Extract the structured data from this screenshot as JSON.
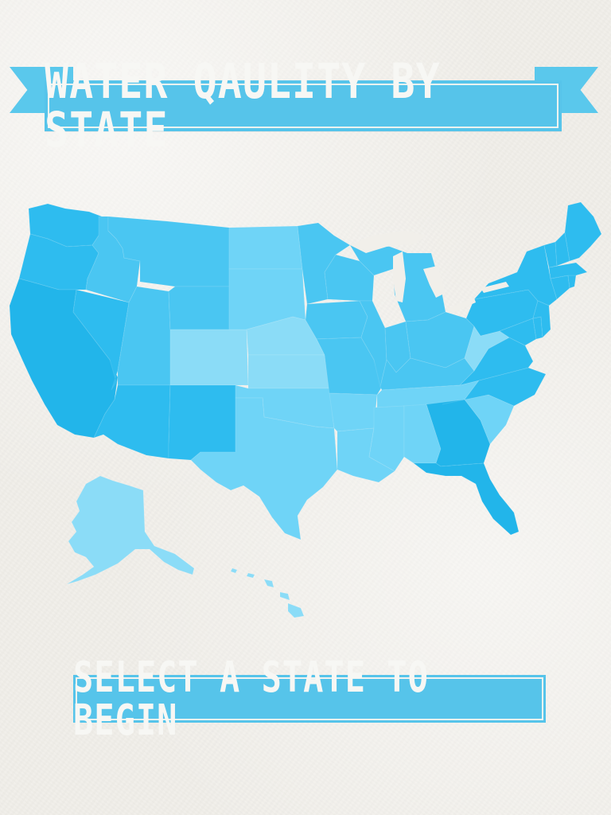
{
  "app": {
    "title": "WATER QAULITY BY STATE",
    "cta_label": "SELECT A STATE TO BEGIN"
  },
  "map": {
    "states": [
      {
        "name": "Washington"
      },
      {
        "name": "Oregon"
      },
      {
        "name": "California"
      },
      {
        "name": "Idaho"
      },
      {
        "name": "Montana"
      },
      {
        "name": "Nevada"
      },
      {
        "name": "Utah"
      },
      {
        "name": "Arizona"
      },
      {
        "name": "Wyoming"
      },
      {
        "name": "Colorado"
      },
      {
        "name": "New Mexico"
      },
      {
        "name": "North Dakota"
      },
      {
        "name": "South Dakota"
      },
      {
        "name": "Nebraska"
      },
      {
        "name": "Kansas"
      },
      {
        "name": "Oklahoma"
      },
      {
        "name": "Texas"
      },
      {
        "name": "Minnesota"
      },
      {
        "name": "Iowa"
      },
      {
        "name": "Missouri"
      },
      {
        "name": "Arkansas"
      },
      {
        "name": "Louisiana"
      },
      {
        "name": "Wisconsin"
      },
      {
        "name": "Illinois"
      },
      {
        "name": "Michigan"
      },
      {
        "name": "Indiana"
      },
      {
        "name": "Ohio"
      },
      {
        "name": "Kentucky"
      },
      {
        "name": "Tennessee"
      },
      {
        "name": "Mississippi"
      },
      {
        "name": "Alabama"
      },
      {
        "name": "Georgia"
      },
      {
        "name": "Florida"
      },
      {
        "name": "South Carolina"
      },
      {
        "name": "North Carolina"
      },
      {
        "name": "Virginia"
      },
      {
        "name": "West Virginia"
      },
      {
        "name": "Pennsylvania"
      },
      {
        "name": "New York"
      },
      {
        "name": "Maryland"
      },
      {
        "name": "Delaware"
      },
      {
        "name": "New Jersey"
      },
      {
        "name": "Connecticut"
      },
      {
        "name": "Rhode Island"
      },
      {
        "name": "Massachusetts"
      },
      {
        "name": "Vermont"
      },
      {
        "name": "New Hampshire"
      },
      {
        "name": "Maine"
      },
      {
        "name": "Alaska"
      },
      {
        "name": "Hawaii"
      }
    ]
  },
  "colors": {
    "background": "#f1efea",
    "ribbon": "#56c4ea",
    "ribbon_dark": "#2d93b8",
    "text": "#f7f7f4",
    "state_darkest": "#22b5ea",
    "state_dark": "#2ebcef",
    "state_mid": "#4ac6f2",
    "state_light": "#6fd4f7",
    "state_lightest": "#8bdcf7"
  }
}
